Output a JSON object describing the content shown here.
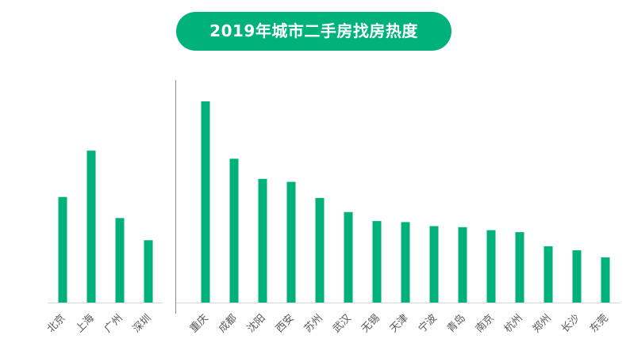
{
  "title": "2019年城市二手房找房热度",
  "colors": {
    "bar": "#00b27a",
    "axis": "#d9d9d9",
    "divider": "#8c8c8c",
    "label": "#595959"
  },
  "chart_data": {
    "type": "bar",
    "title": "2019年城市二手房找房热度",
    "xlabel": "",
    "ylabel": "",
    "ylim": [
      0,
      100
    ],
    "grid": false,
    "legend": "none",
    "groups": [
      {
        "categories": [
          "北京",
          "上海",
          "广州",
          "深圳"
        ],
        "values": [
          52.5,
          75.5,
          42,
          31
        ]
      },
      {
        "categories": [
          "重庆",
          "成都",
          "沈阳",
          "西安",
          "苏州",
          "武汉",
          "无锡",
          "天津",
          "宁波",
          "青岛",
          "南京",
          "杭州",
          "郑州",
          "长沙",
          "东莞"
        ],
        "values": [
          100,
          71.5,
          61.5,
          60,
          52,
          45,
          40.5,
          40,
          38,
          37.5,
          36,
          35,
          28,
          26,
          22.5
        ]
      }
    ]
  }
}
